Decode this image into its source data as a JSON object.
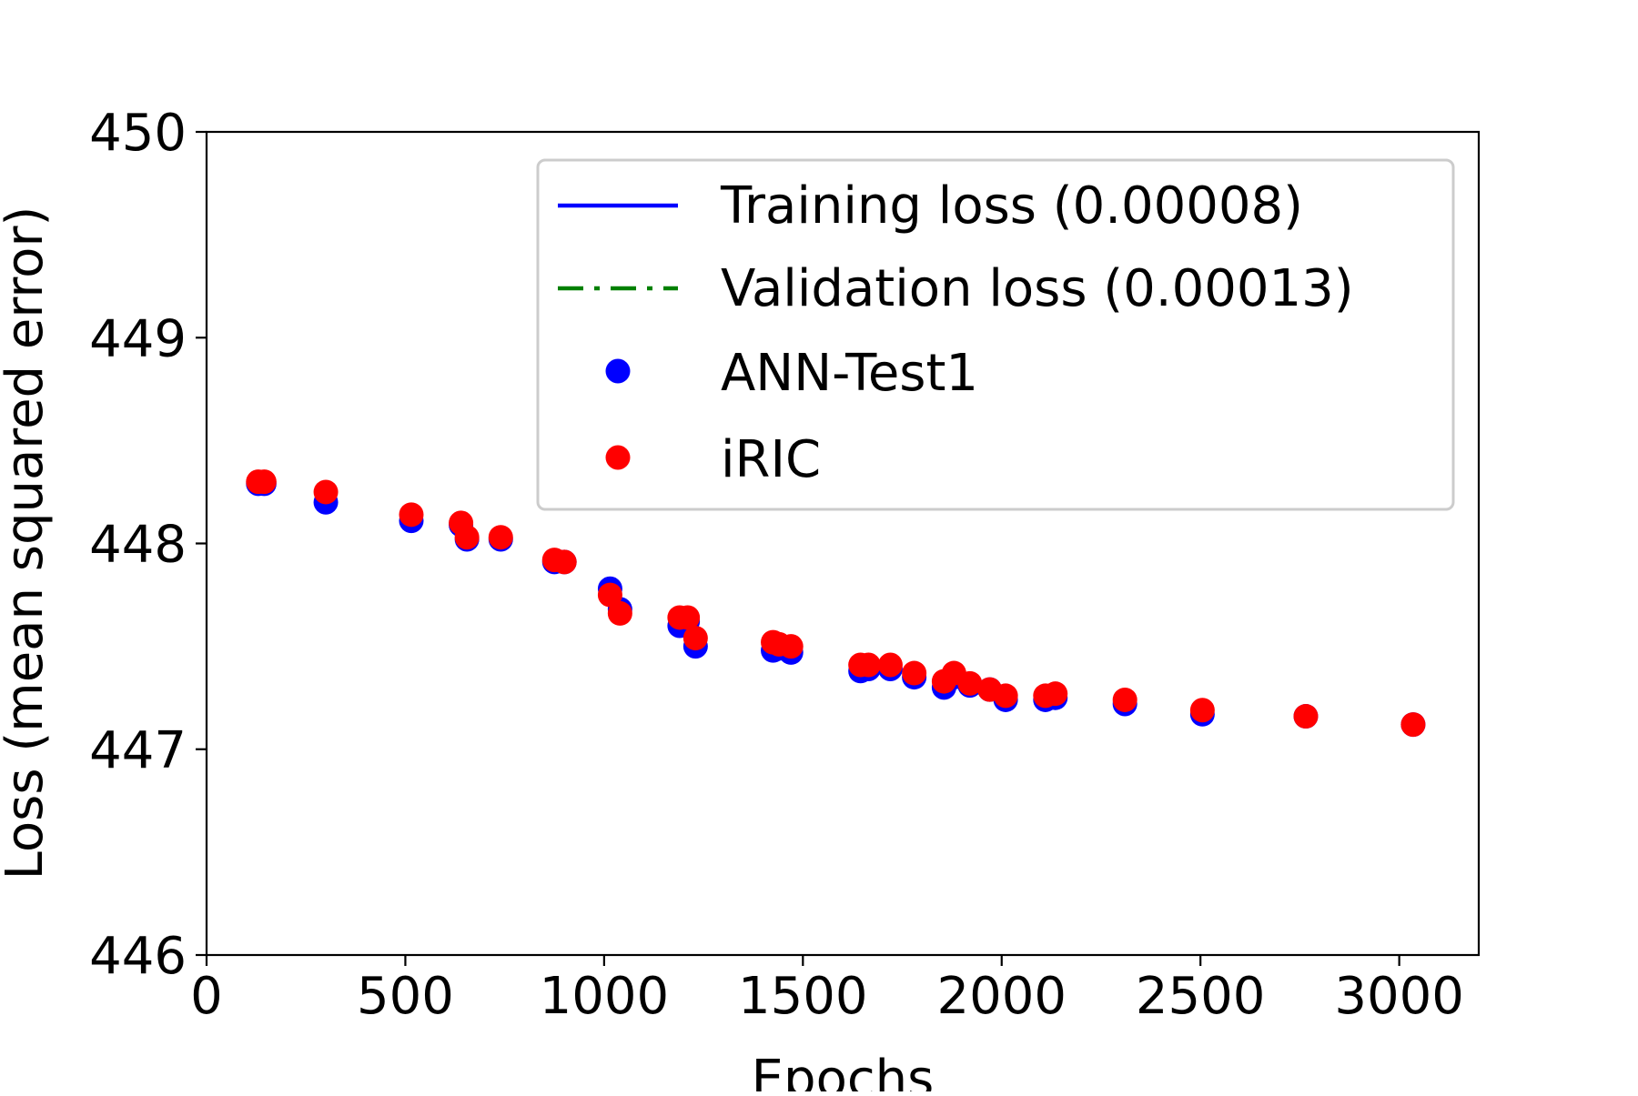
{
  "chart_data": {
    "type": "scatter",
    "title": "",
    "xlabel": "Epochs",
    "ylabel": "Loss (mean squared error)",
    "xlim": [
      0,
      3200
    ],
    "ylim": [
      446,
      450
    ],
    "x_ticks": [
      0,
      500,
      1000,
      1500,
      2000,
      2500,
      3000
    ],
    "y_ticks": [
      446,
      447,
      448,
      449,
      450
    ],
    "grid": false,
    "legend_position": "top-right",
    "legend": [
      {
        "label": "Training loss (0.00008)",
        "kind": "line",
        "style": "solid",
        "color": "#0000ff"
      },
      {
        "label": "Validation loss (0.00013)",
        "kind": "line",
        "style": "dashdot",
        "color": "#008000"
      },
      {
        "label": "ANN-Test1",
        "kind": "marker",
        "color": "#0000ff"
      },
      {
        "label": "iRIC",
        "kind": "marker",
        "color": "#ff0000"
      }
    ],
    "series": [
      {
        "name": "Training loss (0.00008)",
        "type": "line",
        "color": "#0000ff",
        "points": []
      },
      {
        "name": "Validation loss (0.00013)",
        "type": "line",
        "color": "#008000",
        "points": []
      },
      {
        "name": "ANN-Test1",
        "type": "scatter",
        "color": "#0000ff",
        "points": [
          [
            130,
            448.29
          ],
          [
            145,
            448.29
          ],
          [
            300,
            448.2
          ],
          [
            515,
            448.11
          ],
          [
            640,
            448.09
          ],
          [
            655,
            448.02
          ],
          [
            740,
            448.02
          ],
          [
            875,
            447.91
          ],
          [
            900,
            447.91
          ],
          [
            1015,
            447.78
          ],
          [
            1040,
            447.68
          ],
          [
            1190,
            447.6
          ],
          [
            1210,
            447.62
          ],
          [
            1230,
            447.5
          ],
          [
            1425,
            447.48
          ],
          [
            1440,
            447.49
          ],
          [
            1470,
            447.47
          ],
          [
            1645,
            447.38
          ],
          [
            1665,
            447.39
          ],
          [
            1720,
            447.39
          ],
          [
            1780,
            447.35
          ],
          [
            1855,
            447.3
          ],
          [
            1880,
            447.35
          ],
          [
            1920,
            447.31
          ],
          [
            1970,
            447.29
          ],
          [
            2010,
            447.24
          ],
          [
            2110,
            447.24
          ],
          [
            2135,
            447.25
          ],
          [
            2310,
            447.22
          ],
          [
            2505,
            447.17
          ],
          [
            2765,
            447.16
          ],
          [
            3035,
            447.12
          ]
        ]
      },
      {
        "name": "iRIC",
        "type": "scatter",
        "color": "#ff0000",
        "points": [
          [
            130,
            448.3
          ],
          [
            145,
            448.3
          ],
          [
            300,
            448.25
          ],
          [
            515,
            448.14
          ],
          [
            640,
            448.1
          ],
          [
            655,
            448.03
          ],
          [
            740,
            448.03
          ],
          [
            875,
            447.92
          ],
          [
            900,
            447.91
          ],
          [
            1015,
            447.75
          ],
          [
            1040,
            447.66
          ],
          [
            1190,
            447.64
          ],
          [
            1210,
            447.64
          ],
          [
            1230,
            447.54
          ],
          [
            1425,
            447.52
          ],
          [
            1440,
            447.51
          ],
          [
            1470,
            447.5
          ],
          [
            1645,
            447.41
          ],
          [
            1665,
            447.41
          ],
          [
            1720,
            447.41
          ],
          [
            1780,
            447.37
          ],
          [
            1855,
            447.33
          ],
          [
            1880,
            447.37
          ],
          [
            1920,
            447.32
          ],
          [
            1970,
            447.29
          ],
          [
            2010,
            447.26
          ],
          [
            2110,
            447.26
          ],
          [
            2135,
            447.27
          ],
          [
            2310,
            447.24
          ],
          [
            2505,
            447.19
          ],
          [
            2765,
            447.16
          ],
          [
            3035,
            447.12
          ]
        ]
      }
    ]
  }
}
